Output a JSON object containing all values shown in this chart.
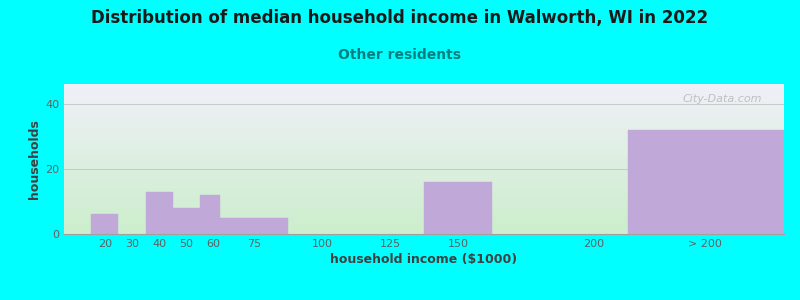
{
  "title": "Distribution of median household income in Walworth, WI in 2022",
  "subtitle": "Other residents",
  "xlabel": "household income ($1000)",
  "ylabel": "households",
  "background_color": "#00FFFF",
  "plot_bg_top": "#F0F0F8",
  "plot_bg_bottom": "#CCEECC",
  "bar_color": "#C0A8D8",
  "bar_edge_color": "#C0A8D8",
  "ylim": [
    0,
    46
  ],
  "yticks": [
    0,
    20,
    40
  ],
  "title_fontsize": 12,
  "subtitle_fontsize": 10,
  "axis_label_fontsize": 9,
  "tick_fontsize": 8,
  "watermark": "City-Data.com",
  "bar_lefts": [
    15,
    35,
    45,
    55,
    62.5,
    87.5,
    137.5,
    212.5
  ],
  "bar_widths": [
    10,
    10,
    10,
    7.5,
    25,
    25,
    25,
    57.5
  ],
  "bar_heights": [
    6,
    13,
    8,
    12,
    5,
    0,
    16,
    32
  ],
  "xlim": [
    5,
    270
  ],
  "xtick_positions": [
    20,
    30,
    40,
    50,
    60,
    75,
    100,
    125,
    150,
    200,
    241
  ],
  "xtick_labels": [
    "20",
    "30",
    "40",
    "50",
    "60",
    "75",
    "100",
    "125",
    "150",
    "200",
    "> 200"
  ]
}
